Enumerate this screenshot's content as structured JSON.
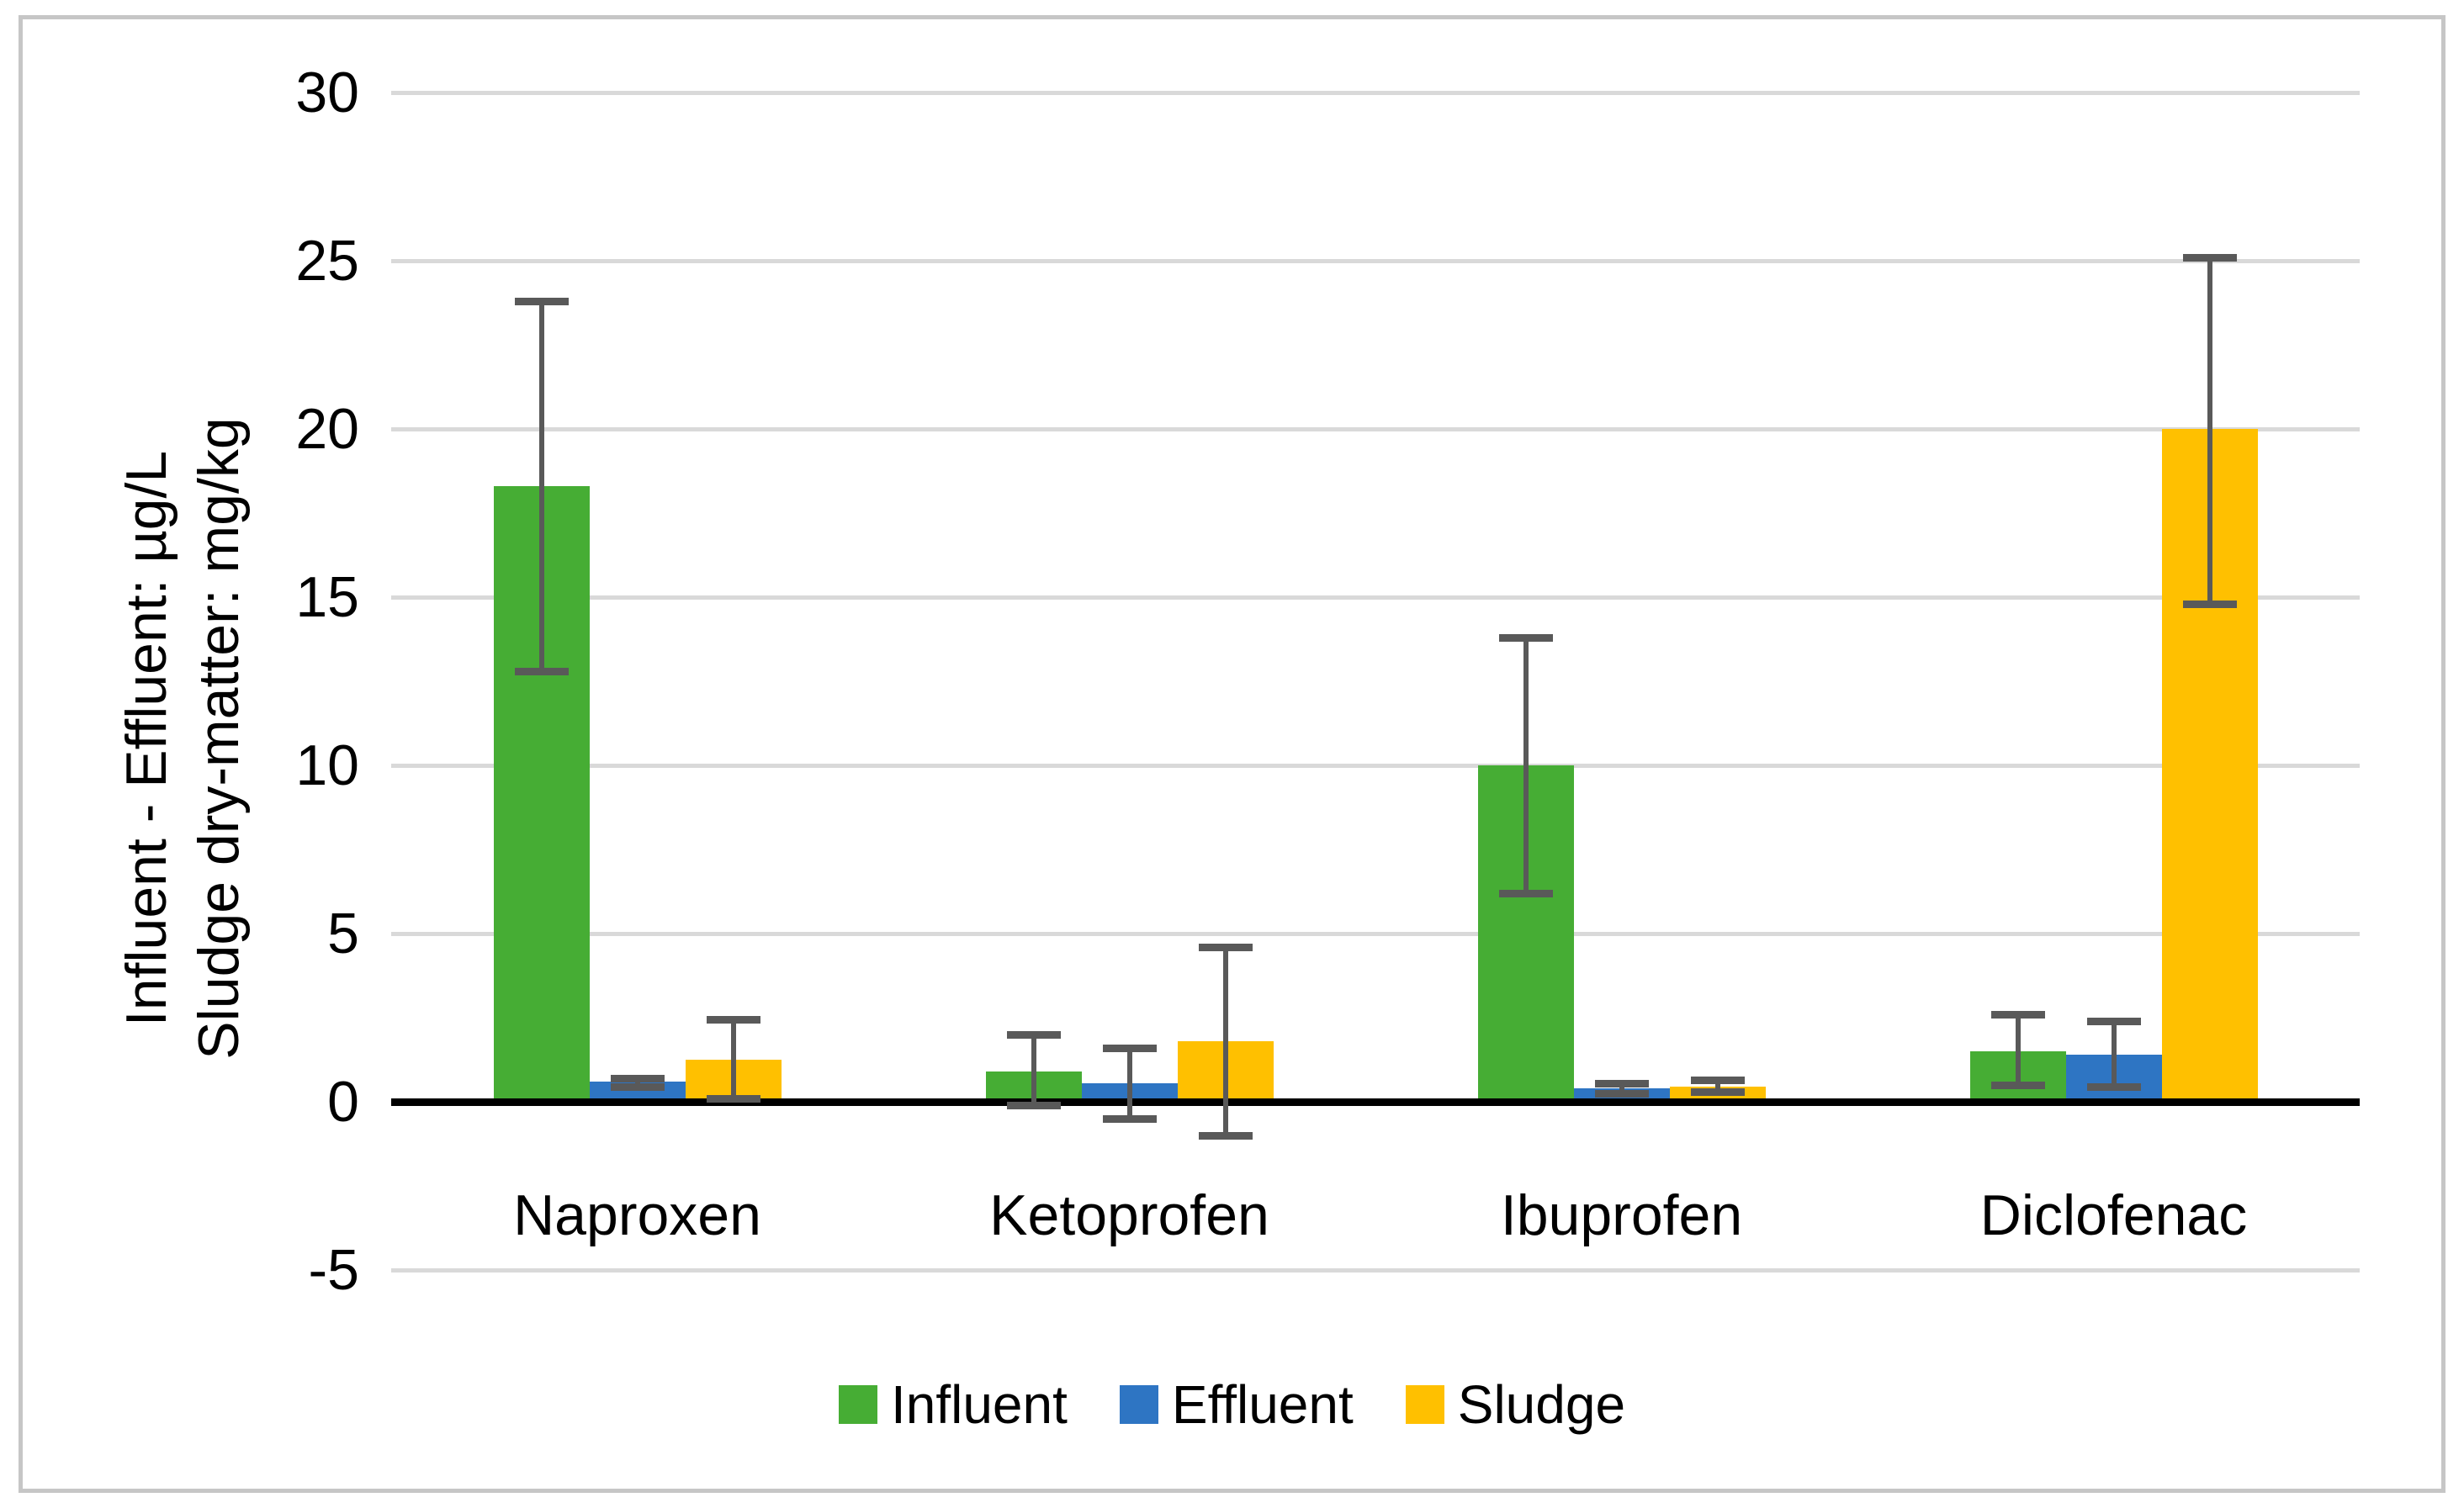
{
  "figure": {
    "background_color": "#ffffff",
    "border_color": "#c6c6c6"
  },
  "y_axis": {
    "title_line1": "Influent - Effluent: µg/L",
    "title_line2": "Sludge dry-matter: mg/kg",
    "tick_labels": [
      "30",
      "25",
      "20",
      "15",
      "10",
      "5",
      "0",
      "-5"
    ]
  },
  "colors": {
    "influent": "#46ad34",
    "effluent": "#2e75c3",
    "sludge": "#ffc000",
    "gridline": "#d9d9d9",
    "zero_line": "#000000",
    "error_bar": "#595959",
    "text": "#000000"
  },
  "chart_data": {
    "type": "bar",
    "title": "",
    "xlabel": "",
    "ylabel_line1": "Influent - Effluent: µg/L",
    "ylabel_line2": "Sludge dry-matter: mg/kg",
    "categories": [
      "Naproxen",
      "Ketoprofen",
      "Ibuprofen",
      "Diclofenac"
    ],
    "series": [
      {
        "name": "Influent",
        "color": "#46ad34",
        "values": [
          18.3,
          0.9,
          10.0,
          1.5
        ],
        "err_low": [
          12.8,
          -0.1,
          6.2,
          0.5
        ],
        "err_high": [
          23.8,
          2.0,
          13.8,
          2.6
        ]
      },
      {
        "name": "Effluent",
        "color": "#2e75c3",
        "values": [
          0.6,
          0.55,
          0.4,
          1.4
        ],
        "err_low": [
          0.45,
          -0.5,
          0.25,
          0.45
        ],
        "err_high": [
          0.7,
          1.6,
          0.55,
          2.4
        ]
      },
      {
        "name": "Sludge",
        "color": "#ffc000",
        "values": [
          1.25,
          1.8,
          0.45,
          20.0
        ],
        "err_low": [
          0.1,
          -1.0,
          0.3,
          14.8
        ],
        "err_high": [
          2.45,
          4.6,
          0.65,
          25.1
        ]
      }
    ],
    "yticks": [
      30,
      25,
      20,
      15,
      10,
      5,
      0,
      -5
    ],
    "ylim": [
      -5,
      30
    ],
    "grid": true,
    "legend_position": "bottom"
  }
}
